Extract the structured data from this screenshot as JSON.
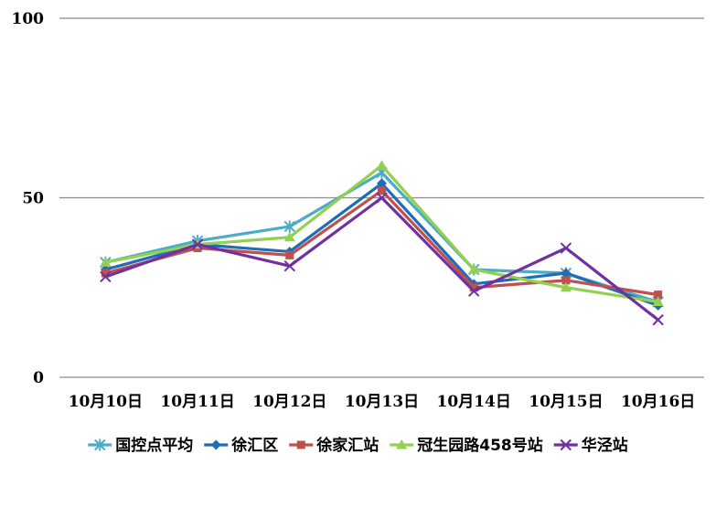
{
  "chart_data": {
    "type": "line",
    "title": "",
    "xlabel": "",
    "ylabel": "",
    "ylim": [
      0,
      100
    ],
    "yticks": [
      0,
      50,
      100
    ],
    "grid": true,
    "legend_position": "bottom",
    "categories": [
      "10月10日",
      "10月11日",
      "10月12日",
      "10月13日",
      "10月14日",
      "10月15日",
      "10月16日"
    ],
    "series": [
      {
        "name": "国控点平均",
        "color": "#4BACC6",
        "marker": "asterisk",
        "values": [
          32,
          38,
          42,
          57,
          30,
          29,
          21
        ]
      },
      {
        "name": "徐汇区",
        "color": "#1F6DB5",
        "marker": "diamond",
        "values": [
          30,
          37,
          35,
          54,
          26,
          29,
          20
        ]
      },
      {
        "name": "徐家汇站",
        "color": "#C0504D",
        "marker": "square",
        "values": [
          29,
          36,
          34,
          52,
          25,
          27,
          23
        ]
      },
      {
        "name": "冠生园路458号站",
        "color": "#92D050",
        "marker": "triangle",
        "values": [
          32,
          37,
          39,
          59,
          30,
          25,
          21
        ]
      },
      {
        "name": "华泾站",
        "color": "#7030A0",
        "marker": "cross",
        "values": [
          28,
          37,
          31,
          50,
          24,
          36,
          16
        ]
      }
    ]
  }
}
